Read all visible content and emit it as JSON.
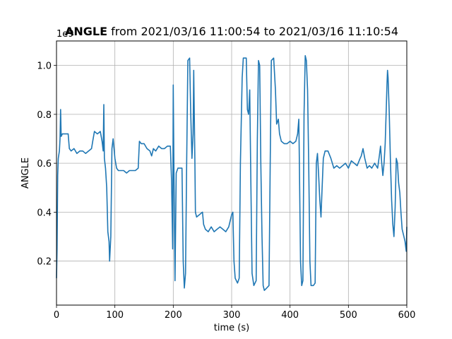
{
  "chart_data": {
    "type": "line",
    "title_bold": "ANGLE",
    "title_rest": " from 2021/03/16 11:00:54 to 2021/03/16 11:10:54",
    "xlabel": "time (s)",
    "ylabel": "ANGLE",
    "y_offset_label": "1e9",
    "xlim": [
      0,
      600
    ],
    "ylim": [
      0.02,
      1.1
    ],
    "x_ticks": [
      0,
      100,
      200,
      300,
      400,
      500,
      600
    ],
    "x_tick_labels": [
      "0",
      "100",
      "200",
      "300",
      "400",
      "500",
      "600"
    ],
    "y_ticks": [
      0.2,
      0.4,
      0.6,
      0.8,
      1.0
    ],
    "y_tick_labels": [
      "0.2",
      "0.4",
      "0.6",
      "0.8",
      "1.0"
    ],
    "grid": true,
    "color": "#1f77b4",
    "series": [
      {
        "values": [
          [
            0,
            0.13
          ],
          [
            1,
            0.25
          ],
          [
            2,
            0.55
          ],
          [
            3,
            0.62
          ],
          [
            5,
            0.65
          ],
          [
            6,
            0.7
          ],
          [
            7,
            0.82
          ],
          [
            8,
            0.71
          ],
          [
            10,
            0.72
          ],
          [
            15,
            0.72
          ],
          [
            20,
            0.72
          ],
          [
            22,
            0.66
          ],
          [
            25,
            0.65
          ],
          [
            30,
            0.66
          ],
          [
            35,
            0.64
          ],
          [
            40,
            0.65
          ],
          [
            45,
            0.65
          ],
          [
            50,
            0.64
          ],
          [
            55,
            0.65
          ],
          [
            60,
            0.66
          ],
          [
            62,
            0.69
          ],
          [
            65,
            0.73
          ],
          [
            70,
            0.72
          ],
          [
            75,
            0.73
          ],
          [
            78,
            0.69
          ],
          [
            80,
            0.65
          ],
          [
            81,
            0.84
          ],
          [
            82,
            0.62
          ],
          [
            84,
            0.58
          ],
          [
            86,
            0.5
          ],
          [
            88,
            0.32
          ],
          [
            90,
            0.28
          ],
          [
            91,
            0.2
          ],
          [
            93,
            0.3
          ],
          [
            95,
            0.66
          ],
          [
            97,
            0.7
          ],
          [
            100,
            0.62
          ],
          [
            103,
            0.58
          ],
          [
            106,
            0.57
          ],
          [
            110,
            0.57
          ],
          [
            115,
            0.57
          ],
          [
            120,
            0.56
          ],
          [
            125,
            0.57
          ],
          [
            130,
            0.57
          ],
          [
            135,
            0.57
          ],
          [
            140,
            0.58
          ],
          [
            142,
            0.69
          ],
          [
            145,
            0.68
          ],
          [
            150,
            0.68
          ],
          [
            155,
            0.66
          ],
          [
            160,
            0.65
          ],
          [
            163,
            0.63
          ],
          [
            166,
            0.66
          ],
          [
            170,
            0.65
          ],
          [
            175,
            0.67
          ],
          [
            180,
            0.66
          ],
          [
            185,
            0.66
          ],
          [
            190,
            0.67
          ],
          [
            195,
            0.67
          ],
          [
            197,
            0.53
          ],
          [
            199,
            0.25
          ],
          [
            200,
            0.92
          ],
          [
            201,
            0.6
          ],
          [
            203,
            0.12
          ],
          [
            205,
            0.56
          ],
          [
            208,
            0.58
          ],
          [
            212,
            0.58
          ],
          [
            215,
            0.58
          ],
          [
            217,
            0.2
          ],
          [
            219,
            0.09
          ],
          [
            221,
            0.15
          ],
          [
            223,
            0.6
          ],
          [
            225,
            1.02
          ],
          [
            228,
            1.03
          ],
          [
            230,
            0.8
          ],
          [
            232,
            0.62
          ],
          [
            234,
            0.72
          ],
          [
            235,
            0.98
          ],
          [
            237,
            0.62
          ],
          [
            238,
            0.4
          ],
          [
            240,
            0.38
          ],
          [
            245,
            0.39
          ],
          [
            250,
            0.4
          ],
          [
            252,
            0.35
          ],
          [
            255,
            0.33
          ],
          [
            260,
            0.32
          ],
          [
            265,
            0.34
          ],
          [
            270,
            0.32
          ],
          [
            275,
            0.33
          ],
          [
            280,
            0.34
          ],
          [
            285,
            0.33
          ],
          [
            290,
            0.32
          ],
          [
            295,
            0.34
          ],
          [
            300,
            0.39
          ],
          [
            302,
            0.4
          ],
          [
            303,
            0.3
          ],
          [
            304,
            0.2
          ],
          [
            306,
            0.13
          ],
          [
            310,
            0.11
          ],
          [
            313,
            0.13
          ],
          [
            315,
            0.6
          ],
          [
            318,
            0.95
          ],
          [
            320,
            1.03
          ],
          [
            325,
            1.03
          ],
          [
            327,
            0.82
          ],
          [
            329,
            0.8
          ],
          [
            331,
            0.9
          ],
          [
            333,
            0.5
          ],
          [
            335,
            0.15
          ],
          [
            338,
            0.1
          ],
          [
            342,
            0.12
          ],
          [
            344,
            0.7
          ],
          [
            346,
            1.02
          ],
          [
            348,
            1.0
          ],
          [
            350,
            0.6
          ],
          [
            352,
            0.3
          ],
          [
            354,
            0.1
          ],
          [
            356,
            0.08
          ],
          [
            360,
            0.09
          ],
          [
            364,
            0.1
          ],
          [
            366,
            0.6
          ],
          [
            368,
            1.02
          ],
          [
            372,
            1.03
          ],
          [
            375,
            0.9
          ],
          [
            377,
            0.76
          ],
          [
            380,
            0.78
          ],
          [
            382,
            0.72
          ],
          [
            385,
            0.69
          ],
          [
            390,
            0.68
          ],
          [
            395,
            0.68
          ],
          [
            400,
            0.69
          ],
          [
            405,
            0.68
          ],
          [
            410,
            0.69
          ],
          [
            413,
            0.72
          ],
          [
            415,
            0.78
          ],
          [
            416,
            0.6
          ],
          [
            418,
            0.2
          ],
          [
            420,
            0.1
          ],
          [
            422,
            0.12
          ],
          [
            424,
            0.8
          ],
          [
            426,
            1.04
          ],
          [
            428,
            1.02
          ],
          [
            430,
            0.9
          ],
          [
            432,
            0.6
          ],
          [
            434,
            0.2
          ],
          [
            436,
            0.1
          ],
          [
            440,
            0.1
          ],
          [
            443,
            0.11
          ],
          [
            445,
            0.6
          ],
          [
            447,
            0.64
          ],
          [
            449,
            0.55
          ],
          [
            451,
            0.45
          ],
          [
            453,
            0.38
          ],
          [
            455,
            0.5
          ],
          [
            457,
            0.62
          ],
          [
            460,
            0.65
          ],
          [
            465,
            0.65
          ],
          [
            470,
            0.62
          ],
          [
            475,
            0.58
          ],
          [
            480,
            0.59
          ],
          [
            485,
            0.58
          ],
          [
            490,
            0.59
          ],
          [
            495,
            0.6
          ],
          [
            500,
            0.58
          ],
          [
            505,
            0.61
          ],
          [
            510,
            0.6
          ],
          [
            515,
            0.59
          ],
          [
            520,
            0.62
          ],
          [
            522,
            0.63
          ],
          [
            525,
            0.66
          ],
          [
            528,
            0.62
          ],
          [
            532,
            0.58
          ],
          [
            536,
            0.59
          ],
          [
            540,
            0.58
          ],
          [
            545,
            0.6
          ],
          [
            550,
            0.58
          ],
          [
            553,
            0.63
          ],
          [
            555,
            0.67
          ],
          [
            557,
            0.6
          ],
          [
            559,
            0.55
          ],
          [
            561,
            0.6
          ],
          [
            563,
            0.68
          ],
          [
            565,
            0.84
          ],
          [
            566,
            0.92
          ],
          [
            567,
            0.98
          ],
          [
            568,
            0.95
          ],
          [
            570,
            0.8
          ],
          [
            572,
            0.6
          ],
          [
            574,
            0.45
          ],
          [
            576,
            0.35
          ],
          [
            578,
            0.3
          ],
          [
            580,
            0.42
          ],
          [
            582,
            0.62
          ],
          [
            584,
            0.6
          ],
          [
            586,
            0.52
          ],
          [
            588,
            0.48
          ],
          [
            590,
            0.4
          ],
          [
            592,
            0.33
          ],
          [
            595,
            0.3
          ],
          [
            597,
            0.28
          ],
          [
            599,
            0.24
          ],
          [
            600,
            0.34
          ]
        ]
      }
    ]
  }
}
